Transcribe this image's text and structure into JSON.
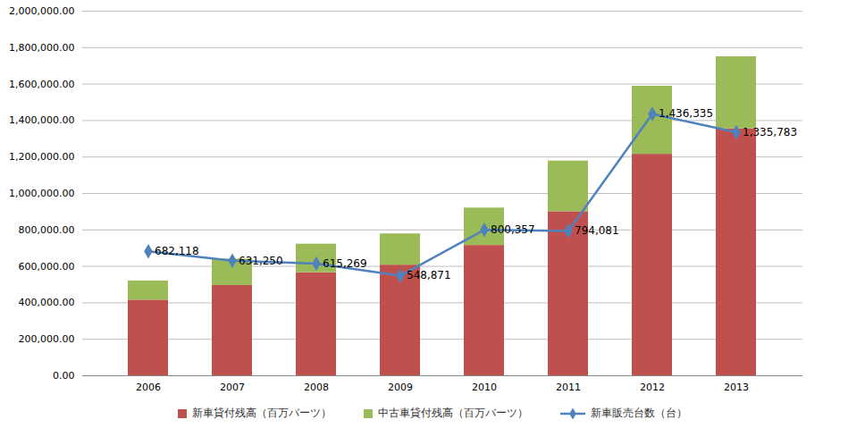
{
  "chart_data": {
    "type": "bar",
    "stacked": true,
    "categories": [
      "2006",
      "2007",
      "2008",
      "2009",
      "2010",
      "2011",
      "2012",
      "2013"
    ],
    "series": [
      {
        "name": "新車貸付残高（百万バーツ）",
        "type": "bar",
        "color": "#c0504d",
        "values": [
          415000,
          495000,
          565000,
          607000,
          715000,
          900000,
          1215000,
          1355000
        ]
      },
      {
        "name": "中古車貸付残高（百万バーツ）",
        "type": "bar",
        "color": "#9bbb59",
        "values": [
          105000,
          145000,
          157000,
          171000,
          205000,
          278000,
          373000,
          395000
        ]
      },
      {
        "name": "新車販売台数（台）",
        "type": "line",
        "color": "#4f81bd",
        "marker": "diamond",
        "data_labels": true,
        "values": [
          682118,
          631250,
          615269,
          548871,
          800357,
          794081,
          1436335,
          1335783
        ],
        "value_labels": [
          "682,118",
          "631,250",
          "615,269",
          "548,871",
          "800,357",
          "794,081",
          "1,436,335",
          "1,335,783"
        ]
      }
    ],
    "ylim": [
      0,
      2000000
    ],
    "yticks": [
      {
        "value": 0,
        "label": "0.00"
      },
      {
        "value": 200000,
        "label": "200,000.00"
      },
      {
        "value": 400000,
        "label": "400,000.00"
      },
      {
        "value": 600000,
        "label": "600,000.00"
      },
      {
        "value": 800000,
        "label": "800,000.00"
      },
      {
        "value": 1000000,
        "label": "1,000,000.00"
      },
      {
        "value": 1200000,
        "label": "1,200,000.00"
      },
      {
        "value": 1400000,
        "label": "1,400,000.00"
      },
      {
        "value": 1600000,
        "label": "1,600,000.00"
      },
      {
        "value": 1800000,
        "label": "1,800,000.00"
      },
      {
        "value": 2000000,
        "label": "2,000,000.00"
      }
    ],
    "grid": true,
    "legend": "bottom"
  }
}
